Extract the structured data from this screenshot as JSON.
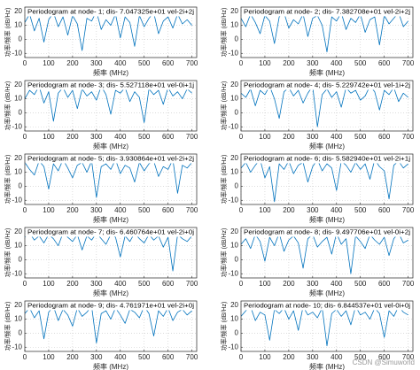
{
  "chart_data": [
    {
      "type": "line",
      "title": "Periodogram at node- 1; dis- 7.047325e+01 vel-2i+2j",
      "xlabel": "频率 (MHz)",
      "ylabel": "功率/频率 (dB/Hz)",
      "color": "#0072bd",
      "grid": true,
      "xlim": [
        0,
        720
      ],
      "ylim": [
        -13,
        23
      ],
      "xticks": [
        0,
        100,
        200,
        300,
        400,
        500,
        600,
        700
      ],
      "yticks": [
        -10,
        0,
        10,
        20
      ],
      "x": [
        0,
        20,
        40,
        60,
        80,
        100,
        120,
        140,
        160,
        180,
        200,
        220,
        240,
        260,
        280,
        300,
        320,
        340,
        360,
        380,
        400,
        420,
        440,
        460,
        480,
        500,
        520,
        540,
        560,
        580,
        600,
        620,
        640,
        660,
        680,
        700
      ],
      "values": [
        12,
        18,
        6,
        15,
        -2,
        14,
        19,
        9,
        16,
        3,
        17,
        11,
        -8,
        15,
        13,
        20,
        7,
        14,
        10,
        18,
        1,
        16,
        12,
        -5,
        17,
        9,
        15,
        19,
        4,
        13,
        16,
        8,
        18,
        11,
        14,
        10
      ]
    },
    {
      "type": "line",
      "title": "Periodogram at node- 2; dis- 7.382708e+01 vel-2i+2j",
      "xlabel": "频率 (MHz)",
      "ylabel": "功率/频率 (dB/Hz)",
      "color": "#0072bd",
      "grid": true,
      "xlim": [
        0,
        720
      ],
      "ylim": [
        -13,
        23
      ],
      "xticks": [
        0,
        100,
        200,
        300,
        400,
        500,
        600,
        700
      ],
      "yticks": [
        -10,
        0,
        10,
        20
      ],
      "x": [
        0,
        20,
        40,
        60,
        80,
        100,
        120,
        140,
        160,
        180,
        200,
        220,
        240,
        260,
        280,
        300,
        320,
        340,
        360,
        380,
        400,
        420,
        440,
        460,
        480,
        500,
        520,
        540,
        560,
        580,
        600,
        620,
        640,
        660,
        680,
        700
      ],
      "values": [
        15,
        9,
        18,
        12,
        4,
        17,
        13,
        -3,
        16,
        19,
        8,
        14,
        11,
        18,
        2,
        15,
        17,
        10,
        -9,
        16,
        13,
        19,
        7,
        15,
        12,
        18,
        5,
        14,
        16,
        -4,
        17,
        11,
        15,
        19,
        9,
        13
      ]
    },
    {
      "type": "line",
      "title": "Periodogram at node- 3; dis- 5.527118e+01 vel-0i+1j",
      "xlabel": "频率 (MHz)",
      "ylabel": "功率/频率 (dB/Hz)",
      "color": "#0072bd",
      "grid": true,
      "xlim": [
        0,
        720
      ],
      "ylim": [
        -13,
        23
      ],
      "xticks": [
        0,
        100,
        200,
        300,
        400,
        500,
        600,
        700
      ],
      "yticks": [
        -10,
        0,
        10,
        20
      ],
      "x": [
        0,
        20,
        40,
        60,
        80,
        100,
        120,
        140,
        160,
        180,
        200,
        220,
        240,
        260,
        280,
        300,
        320,
        340,
        360,
        380,
        400,
        420,
        440,
        460,
        480,
        500,
        520,
        540,
        560,
        580,
        600,
        620,
        640,
        660,
        680,
        700
      ],
      "values": [
        10,
        16,
        13,
        19,
        7,
        15,
        -6,
        14,
        18,
        11,
        16,
        3,
        17,
        12,
        15,
        9,
        19,
        13,
        -1,
        16,
        14,
        18,
        8,
        15,
        11,
        -7,
        17,
        13,
        16,
        6,
        18,
        12,
        15,
        10,
        17,
        14
      ]
    },
    {
      "type": "line",
      "title": "Periodogram at node- 4; dis- 5.229742e+01 vel-1i+2j",
      "xlabel": "频率 (MHz)",
      "ylabel": "功率/频率 (dB/Hz)",
      "color": "#0072bd",
      "grid": true,
      "xlim": [
        0,
        720
      ],
      "ylim": [
        -13,
        23
      ],
      "xticks": [
        0,
        100,
        200,
        300,
        400,
        500,
        600,
        700
      ],
      "yticks": [
        -10,
        0,
        10,
        20
      ],
      "x": [
        0,
        20,
        40,
        60,
        80,
        100,
        120,
        140,
        160,
        180,
        200,
        220,
        240,
        260,
        280,
        300,
        320,
        340,
        360,
        380,
        400,
        420,
        440,
        460,
        480,
        500,
        520,
        540,
        560,
        580,
        600,
        620,
        640,
        660,
        680,
        700
      ],
      "values": [
        14,
        11,
        17,
        5,
        16,
        13,
        19,
        10,
        -4,
        15,
        18,
        12,
        16,
        7,
        14,
        19,
        -10,
        13,
        17,
        11,
        15,
        4,
        18,
        14,
        16,
        9,
        12,
        19,
        15,
        2,
        16,
        13,
        18,
        8,
        14,
        11
      ]
    },
    {
      "type": "line",
      "title": "Periodogram at node- 5; dis- 3.930864e+01 vel-2i+2j",
      "xlabel": "频率 (MHz)",
      "ylabel": "功率/频率 (dB/Hz)",
      "color": "#0072bd",
      "grid": true,
      "xlim": [
        0,
        720
      ],
      "ylim": [
        -13,
        23
      ],
      "xticks": [
        0,
        100,
        200,
        300,
        400,
        500,
        600,
        700
      ],
      "yticks": [
        -10,
        0,
        10,
        20
      ],
      "x": [
        0,
        20,
        40,
        60,
        80,
        100,
        120,
        140,
        160,
        180,
        200,
        220,
        240,
        260,
        280,
        300,
        320,
        340,
        360,
        380,
        400,
        420,
        440,
        460,
        480,
        500,
        520,
        540,
        560,
        580,
        600,
        620,
        640,
        660,
        680,
        700
      ],
      "values": [
        17,
        12,
        8,
        18,
        14,
        -2,
        16,
        11,
        19,
        13,
        6,
        15,
        17,
        10,
        18,
        -8,
        14,
        16,
        12,
        19,
        9,
        15,
        13,
        3,
        17,
        11,
        16,
        18,
        7,
        14,
        12,
        19,
        -5,
        15,
        13,
        17
      ]
    },
    {
      "type": "line",
      "title": "Periodogram at node- 6; dis- 5.582940e+01 vel-2i+1j",
      "xlabel": "频率 (MHz)",
      "ylabel": "功率/频率 (dB/Hz)",
      "color": "#0072bd",
      "grid": true,
      "xlim": [
        0,
        720
      ],
      "ylim": [
        -13,
        23
      ],
      "xticks": [
        0,
        100,
        200,
        300,
        400,
        500,
        600,
        700
      ],
      "yticks": [
        -10,
        0,
        10,
        20
      ],
      "x": [
        0,
        20,
        40,
        60,
        80,
        100,
        120,
        140,
        160,
        180,
        200,
        220,
        240,
        260,
        280,
        300,
        320,
        340,
        360,
        380,
        400,
        420,
        440,
        460,
        480,
        500,
        520,
        540,
        560,
        580,
        600,
        620,
        640,
        660,
        680,
        700
      ],
      "values": [
        13,
        17,
        10,
        15,
        19,
        6,
        14,
        -11,
        16,
        12,
        18,
        9,
        15,
        17,
        3,
        14,
        19,
        11,
        16,
        13,
        -3,
        18,
        15,
        10,
        17,
        12,
        16,
        5,
        19,
        14,
        11,
        -9,
        15,
        18,
        13,
        16
      ]
    },
    {
      "type": "line",
      "title": "Periodogram at node- 7; dis- 6.460764e+01 vel-2i+0j",
      "xlabel": "频率 (MHz)",
      "ylabel": "功率/频率 (dB/Hz)",
      "color": "#0072bd",
      "grid": true,
      "xlim": [
        0,
        720
      ],
      "ylim": [
        -13,
        23
      ],
      "xticks": [
        0,
        100,
        200,
        300,
        400,
        500,
        600,
        700
      ],
      "yticks": [
        -10,
        0,
        10,
        20
      ],
      "x": [
        0,
        20,
        40,
        60,
        80,
        100,
        120,
        140,
        160,
        180,
        200,
        220,
        240,
        260,
        280,
        300,
        320,
        340,
        360,
        380,
        400,
        420,
        440,
        460,
        480,
        500,
        520,
        540,
        560,
        580,
        600,
        620,
        640,
        660,
        680,
        700
      ],
      "values": [
        16,
        19,
        14,
        17,
        12,
        18,
        15,
        10,
        19,
        16,
        13,
        18,
        7,
        17,
        14,
        19,
        15,
        11,
        18,
        16,
        2,
        17,
        13,
        19,
        15,
        12,
        18,
        14,
        17,
        9,
        16,
        -8,
        18,
        15,
        13,
        17
      ]
    },
    {
      "type": "line",
      "title": "Periodogram at node- 8; dis- 9.497706e+01 vel-0i+2j",
      "xlabel": "频率 (MHz)",
      "ylabel": "功率/频率 (dB/Hz)",
      "color": "#0072bd",
      "grid": true,
      "xlim": [
        0,
        720
      ],
      "ylim": [
        -13,
        23
      ],
      "xticks": [
        0,
        100,
        200,
        300,
        400,
        500,
        600,
        700
      ],
      "yticks": [
        -10,
        0,
        10,
        20
      ],
      "x": [
        0,
        20,
        40,
        60,
        80,
        100,
        120,
        140,
        160,
        180,
        200,
        220,
        240,
        260,
        280,
        300,
        320,
        340,
        360,
        380,
        400,
        420,
        440,
        460,
        480,
        500,
        520,
        540,
        560,
        580,
        600,
        620,
        640,
        660,
        680,
        700
      ],
      "values": [
        11,
        15,
        8,
        18,
        13,
        -1,
        16,
        10,
        19,
        6,
        14,
        17,
        12,
        -6,
        15,
        18,
        9,
        13,
        16,
        4,
        19,
        11,
        15,
        -10,
        17,
        13,
        8,
        18,
        14,
        11,
        16,
        3,
        15,
        19,
        12,
        14
      ]
    },
    {
      "type": "line",
      "title": "Periodogram at node- 9; dis- 4.761971e+01 vel-2i+0j",
      "xlabel": "频率 (MHz)",
      "ylabel": "功率/频率 (dB/Hz)",
      "color": "#0072bd",
      "grid": true,
      "xlim": [
        0,
        720
      ],
      "ylim": [
        -13,
        23
      ],
      "xticks": [
        0,
        100,
        200,
        300,
        400,
        500,
        600,
        700
      ],
      "yticks": [
        -10,
        0,
        10,
        20
      ],
      "x": [
        0,
        20,
        40,
        60,
        80,
        100,
        120,
        140,
        160,
        180,
        200,
        220,
        240,
        260,
        280,
        300,
        320,
        340,
        360,
        380,
        400,
        420,
        440,
        460,
        480,
        500,
        520,
        540,
        560,
        580,
        600,
        620,
        640,
        660,
        680,
        700
      ],
      "values": [
        14,
        18,
        11,
        16,
        -4,
        15,
        19,
        9,
        17,
        13,
        5,
        18,
        12,
        15,
        19,
        -7,
        14,
        16,
        10,
        18,
        13,
        7,
        17,
        15,
        11,
        19,
        14,
        -2,
        16,
        12,
        18,
        9,
        15,
        17,
        13,
        16
      ]
    },
    {
      "type": "line",
      "title": "Periodogram at node- 10; dis- 6.844537e+01 vel-0i+0j",
      "xlabel": "频率 (MHz)",
      "ylabel": "功率/频率 (dB/Hz)",
      "color": "#0072bd",
      "grid": true,
      "xlim": [
        0,
        720
      ],
      "ylim": [
        -13,
        23
      ],
      "xticks": [
        0,
        100,
        200,
        300,
        400,
        500,
        600,
        700
      ],
      "yticks": [
        -10,
        0,
        10,
        20
      ],
      "x": [
        0,
        20,
        40,
        60,
        80,
        100,
        120,
        140,
        160,
        180,
        200,
        220,
        240,
        260,
        280,
        300,
        320,
        340,
        360,
        380,
        400,
        420,
        440,
        460,
        480,
        500,
        520,
        540,
        560,
        580,
        600,
        620,
        640,
        660,
        680,
        700
      ],
      "values": [
        12,
        16,
        19,
        9,
        15,
        13,
        -5,
        17,
        14,
        18,
        10,
        16,
        2,
        19,
        13,
        15,
        11,
        18,
        -9,
        14,
        17,
        12,
        16,
        6,
        19,
        13,
        15,
        10,
        18,
        14,
        -3,
        16,
        12,
        19,
        15,
        13
      ]
    }
  ],
  "watermark": "CSDN @Simuworld"
}
